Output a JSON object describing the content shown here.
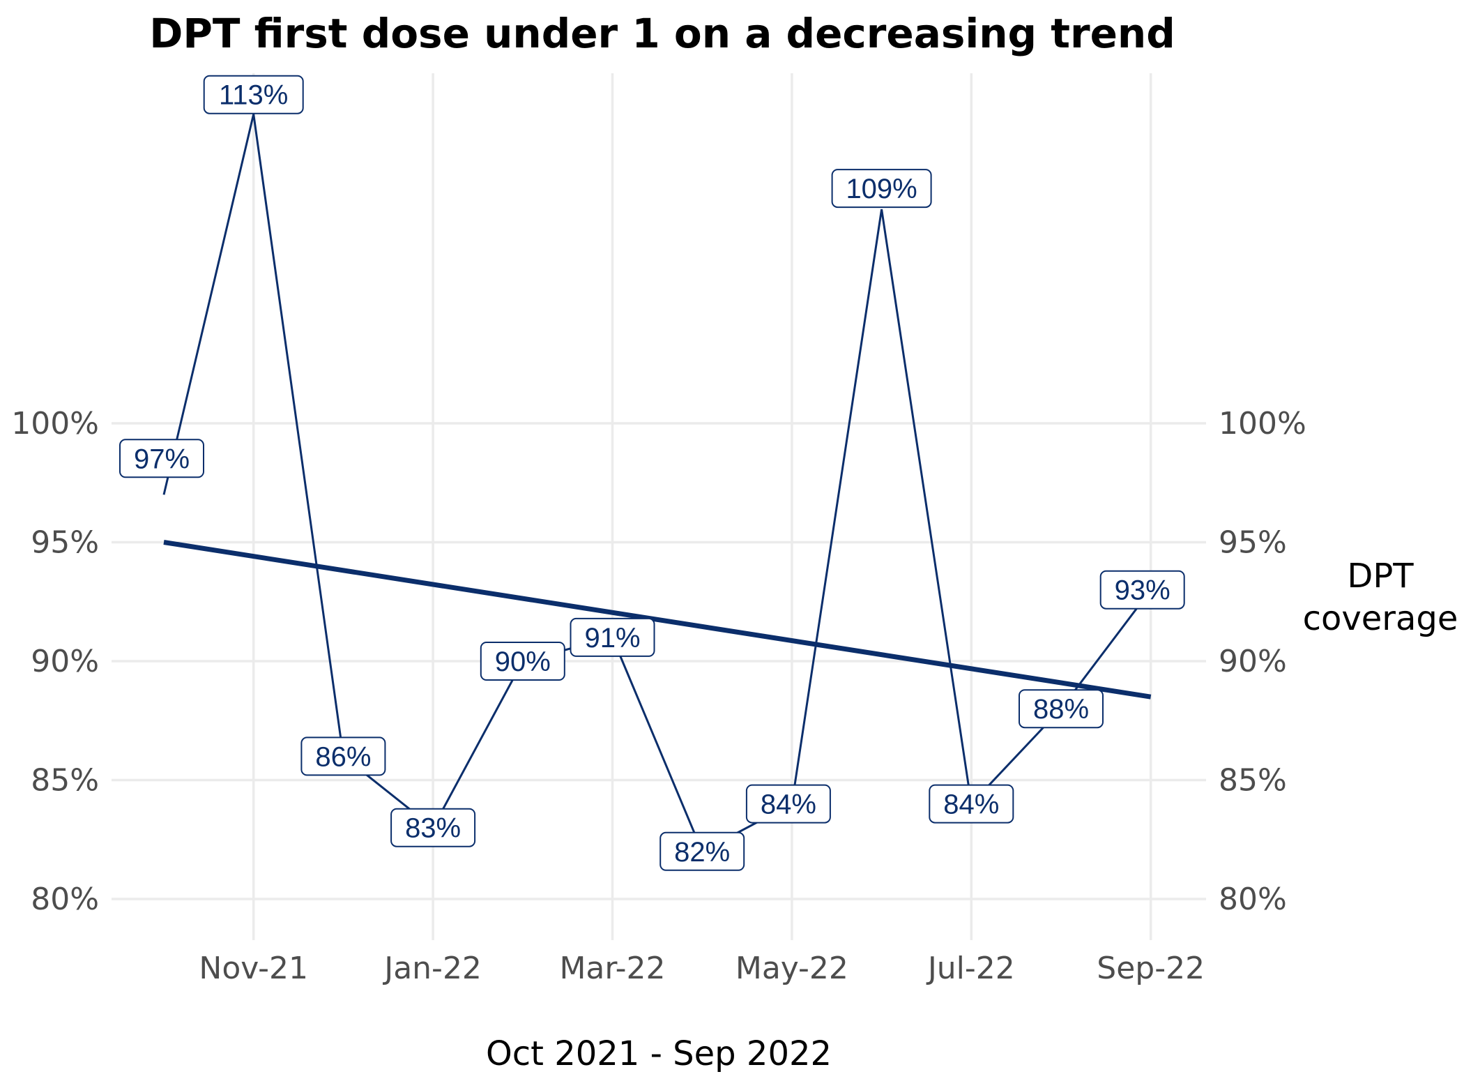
{
  "chart_data": {
    "type": "line",
    "title": "DPT first dose under 1 on a decreasing trend",
    "xlabel": "Oct 2021 - Sep 2022",
    "ylabel": "",
    "right_axis_title": [
      "DPT",
      "coverage"
    ],
    "x": [
      "Oct-21",
      "Nov-21",
      "Dec-21",
      "Jan-22",
      "Feb-22",
      "Mar-22",
      "Apr-22",
      "May-22",
      "Jun-22",
      "Jul-22",
      "Aug-22",
      "Sep-22"
    ],
    "x_tick_labels": [
      "Nov-21",
      "Jan-22",
      "Mar-22",
      "May-22",
      "Jul-22",
      "Sep-22"
    ],
    "y_tick_labels": [
      "80%",
      "85%",
      "90%",
      "95%",
      "100%"
    ],
    "y_ticks": [
      80,
      85,
      90,
      95,
      100
    ],
    "series": [
      {
        "values": [
          97,
          113,
          86,
          83,
          90,
          91,
          82,
          84,
          109,
          84,
          88,
          93
        ],
        "labels": [
          "97%",
          "113%",
          "86%",
          "83%",
          "90%",
          "91%",
          "82%",
          "84%",
          "109%",
          "84%",
          "88%",
          "93%"
        ],
        "color": "#0b2e6b"
      }
    ],
    "trend_line": {
      "start": {
        "x": "Oct-21",
        "y": 95.0
      },
      "end": {
        "x": "Sep-22",
        "y": 88.5
      },
      "color": "#0b2e6b"
    },
    "ylim": [
      78,
      120
    ],
    "grid": true,
    "legend": "none"
  }
}
